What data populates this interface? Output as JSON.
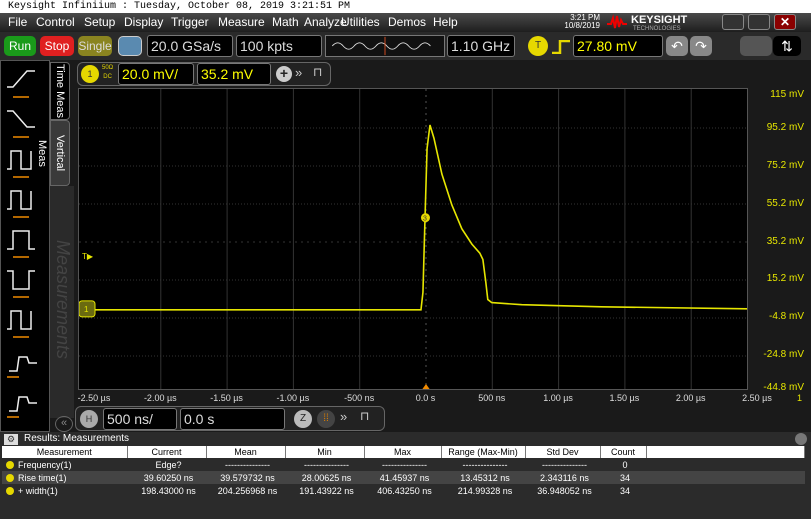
{
  "window": {
    "title": "Keysight Infiniium : Tuesday, October 08, 2019 3:21:51 PM",
    "clock_time": "3:21 PM",
    "clock_date": "10/8/2019",
    "logo": "KEYSIGHT TECHNOLOGIES"
  },
  "menu": [
    "File",
    "Control",
    "Setup",
    "Display",
    "Trigger",
    "Measure",
    "Math",
    "Analyze",
    "Utilities",
    "Demos",
    "Help"
  ],
  "toolbar": {
    "run": "Run",
    "stop": "Stop",
    "single": "Single",
    "sample_rate": "20.0 GSa/s",
    "memory_depth": "100 kpts",
    "bandwidth": "1.10 GHz",
    "trigger_badge": "T",
    "trigger_level": "27.80 mV"
  },
  "channel": {
    "badge": "1",
    "coupling_top": "50Ω",
    "coupling_bottom": "DC",
    "scale": "20.0 mV/",
    "offset": "35.2 mV"
  },
  "left_panel": {
    "tab_time": "Time Meas",
    "tab_vertical": "Vertical Meas",
    "watermark": "Measurements"
  },
  "colors": {
    "trace": "#e6e600",
    "accent_orange": "#f08a00",
    "stop": "#e02020",
    "run": "#1a9a1a"
  },
  "chart_data": {
    "type": "line",
    "xlabel": "",
    "ylabel": "",
    "x_tick_labels": [
      "-2.50 µs",
      "-2.00 µs",
      "-1.50 µs",
      "-1.00 µs",
      "-500 ns",
      "0.0 s",
      "500 ns",
      "1.00 µs",
      "1.50 µs",
      "2.00 µs",
      "2.50 µs"
    ],
    "y_tick_labels": [
      "115 mV",
      "95.2 mV",
      "75.2 mV",
      "55.2 mV",
      "35.2 mV",
      "15.2 mV",
      "-4.8 mV",
      "-24.8 mV",
      "-44.8 mV"
    ],
    "xlim_ns": [
      -2500,
      2500
    ],
    "ylim_mV": [
      -44.8,
      115
    ],
    "grid": true,
    "series": [
      {
        "x_ns": [
          -2500,
          -38,
          -23,
          -8,
          8,
          30,
          60,
          120,
          195,
          270,
          346,
          406,
          429,
          451,
          466,
          496,
          722,
          1323,
          2451
        ],
        "y_mV": [
          -0.5,
          -0.5,
          8.7,
          46.6,
          84.4,
          96.8,
          89.8,
          70.9,
          54.7,
          42.2,
          34.1,
          29.3,
          26,
          14.1,
          4.9,
          3.3,
          2.2,
          1.1,
          0
        ]
      }
    ],
    "markers": {
      "trigger_level_label": "T",
      "channel_label": "1",
      "measurement_marker": "3",
      "right_edge_label": "1"
    }
  },
  "horizontal": {
    "badge": "H",
    "scale": "500 ns/",
    "position": "0.0 s"
  },
  "results": {
    "title": "Results: Measurements",
    "columns": [
      "Measurement",
      "Current",
      "Mean",
      "Min",
      "Max",
      "Range (Max-Min)",
      "Std Dev",
      "Count"
    ],
    "rows": [
      [
        "Frequency(1)",
        "Edge?",
        "---------------",
        "---------------",
        "---------------",
        "---------------",
        "---------------",
        "0"
      ],
      [
        "Rise time(1)",
        "39.60250 ns",
        "39.579732 ns",
        "28.00625 ns",
        "41.45937 ns",
        "13.45312 ns",
        "2.343116 ns",
        "34"
      ],
      [
        "+ width(1)",
        "198.43000 ns",
        "204.256968 ns",
        "191.43922 ns",
        "406.43250 ns",
        "214.99328 ns",
        "36.948052 ns",
        "34"
      ]
    ]
  }
}
